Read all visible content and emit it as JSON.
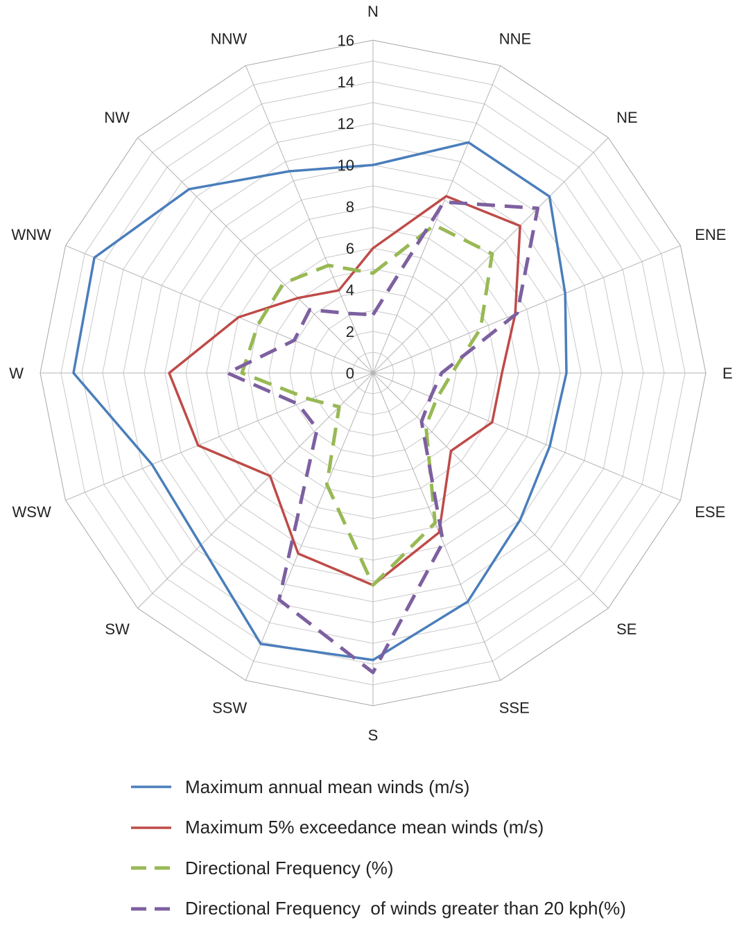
{
  "chart_data": {
    "type": "radar",
    "directions": [
      "N",
      "NNE",
      "NE",
      "ENE",
      "E",
      "ESE",
      "SE",
      "SSE",
      "S",
      "SSW",
      "SW",
      "WSW",
      "W",
      "WNW",
      "NW",
      "NNW"
    ],
    "r_ticks": [
      0,
      2,
      4,
      6,
      8,
      10,
      12,
      14,
      16
    ],
    "rlim": [
      0,
      16
    ],
    "grid": true,
    "legend_position": "bottom",
    "series": [
      {
        "name": "Maximum annual mean winds (m/s)",
        "color": "#4a7ebb",
        "dash": "solid",
        "values": [
          10,
          12,
          12,
          10,
          9.3,
          9.2,
          10,
          11.9,
          13.8,
          14.1,
          11.7,
          11.5,
          14.4,
          14.5,
          12.5,
          10.5
        ]
      },
      {
        "name": "Maximum 5% exceedance mean winds (m/s)",
        "color": "#be4b48",
        "dash": "solid",
        "values": [
          6,
          9.2,
          10,
          7.4,
          6.2,
          6.2,
          5.3,
          8.3,
          10.2,
          9.4,
          7,
          9.1,
          9.8,
          7,
          5.1,
          4.3
        ]
      },
      {
        "name": "Directional Frequency (%)",
        "color": "#98b954",
        "dash": "dashed",
        "values": [
          4.8,
          7.7,
          8.1,
          5.6,
          3.8,
          3.3,
          3.6,
          7.8,
          10.2,
          5.8,
          2.3,
          3.3,
          6.3,
          6,
          6.1,
          5.6
        ]
      },
      {
        "name": "Directional Frequency  of winds greater than 20 kph(%)",
        "color": "#7d60a0",
        "dash": "dashed",
        "values": [
          2.8,
          8.9,
          11.2,
          7.5,
          3.3,
          3,
          3.3,
          8.8,
          14.4,
          11.8,
          3.8,
          3.9,
          7,
          4.1,
          4.3,
          3.1
        ]
      }
    ]
  }
}
